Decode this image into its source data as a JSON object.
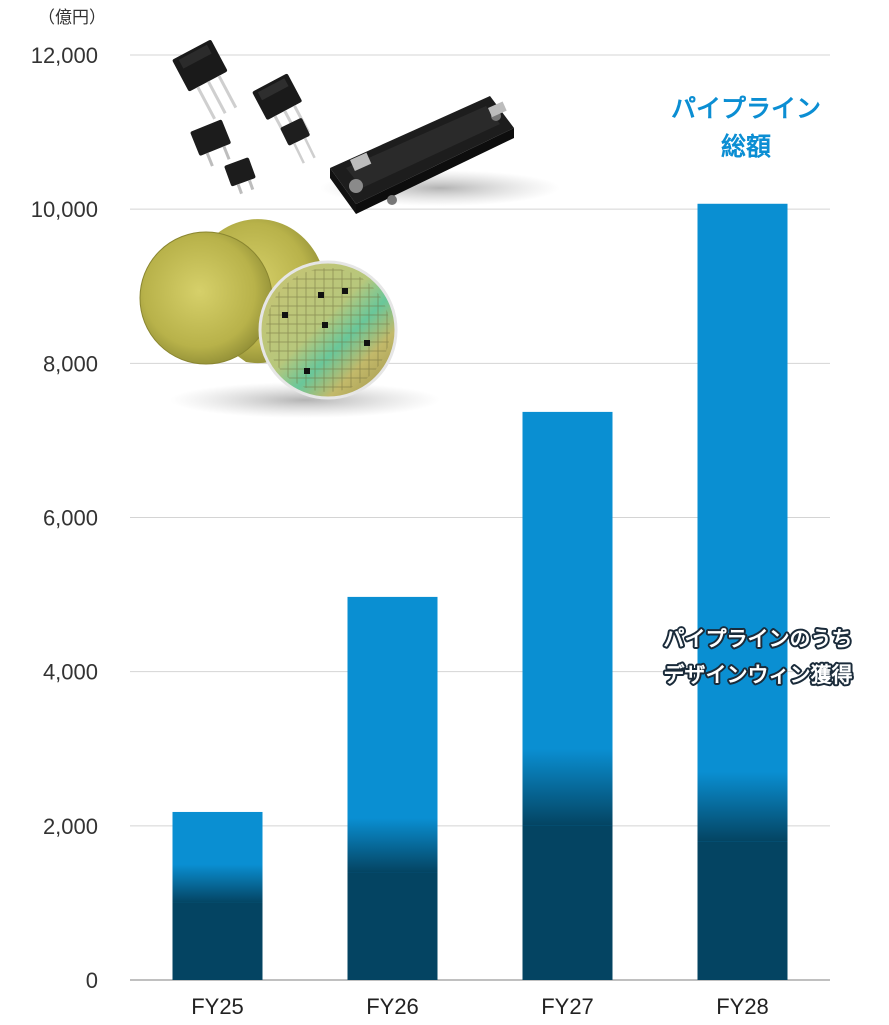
{
  "chart_data": {
    "type": "bar",
    "stacked": true,
    "unit_label": "（億円）",
    "categories": [
      "FY25",
      "FY26",
      "FY27",
      "FY28"
    ],
    "series": [
      {
        "name": "パイプラインのうち\nデザインウィン獲得",
        "values": [
          1000,
          1400,
          2000,
          1800
        ],
        "color": "#044462"
      },
      {
        "name": "パイプライン\n総額",
        "values": [
          2180,
          4970,
          7370,
          10070
        ],
        "color": "#0a8fd2"
      }
    ],
    "ylim": [
      0,
      12000
    ],
    "yticks": [
      "0",
      "2,000",
      "4,000",
      "6,000",
      "8,000",
      "10,000",
      "12,000"
    ],
    "ytick_values": [
      0,
      2000,
      4000,
      6000,
      8000,
      10000,
      12000
    ],
    "grid": true,
    "annotations": {
      "total_line1": "パイプライン",
      "total_line2": "総額",
      "design_win_line1": "パイプラインのうち",
      "design_win_line2": "デザインウィン獲得"
    },
    "images": {
      "packages": "power-semiconductor-packages-photo",
      "wafers": "sic-wafers-photo"
    }
  }
}
